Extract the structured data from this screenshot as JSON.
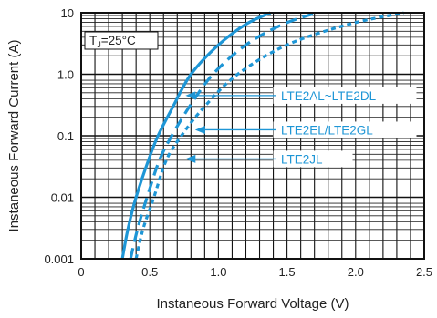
{
  "chart_data": {
    "type": "line",
    "xlabel": "Instaneous Forward Voltage (V)",
    "ylabel": "Instaneous Forward Current (A)",
    "xlim": [
      0,
      2.5
    ],
    "ylim": [
      0.001,
      10
    ],
    "y_scale": "log",
    "grid": true,
    "x_ticks": [
      {
        "v": 0,
        "label": "0"
      },
      {
        "v": 0.5,
        "label": "0.5"
      },
      {
        "v": 1.0,
        "label": "1.0"
      },
      {
        "v": 1.5,
        "label": "1.5"
      },
      {
        "v": 2.0,
        "label": "2.0"
      },
      {
        "v": 2.5,
        "label": "2.5"
      }
    ],
    "y_ticks": [
      {
        "v": 0.001,
        "label": "0.001"
      },
      {
        "v": 0.01,
        "label": "0.01"
      },
      {
        "v": 0.1,
        "label": "0.1"
      },
      {
        "v": 1.0,
        "label": "1.0"
      },
      {
        "v": 10,
        "label": "10"
      }
    ],
    "condition_label": {
      "pre": "T",
      "sub": "J",
      "post": "=25°C"
    },
    "series": [
      {
        "name": "LTE2AL~LTE2DL",
        "dash": "solid",
        "points": [
          [
            0.3,
            0.001
          ],
          [
            0.34,
            0.003
          ],
          [
            0.4,
            0.01
          ],
          [
            0.49,
            0.04
          ],
          [
            0.56,
            0.1
          ],
          [
            0.67,
            0.3
          ],
          [
            0.8,
            1.0
          ],
          [
            1.0,
            3.0
          ],
          [
            1.2,
            6.5
          ],
          [
            1.38,
            10
          ]
        ]
      },
      {
        "name": "LTE2EL/LTE2GL",
        "dash": "long-dash",
        "points": [
          [
            0.36,
            0.001
          ],
          [
            0.41,
            0.003
          ],
          [
            0.48,
            0.01
          ],
          [
            0.57,
            0.04
          ],
          [
            0.66,
            0.1
          ],
          [
            0.79,
            0.3
          ],
          [
            0.96,
            1.0
          ],
          [
            1.2,
            3.0
          ],
          [
            1.47,
            6.5
          ],
          [
            1.72,
            10
          ]
        ]
      },
      {
        "name": "LTE2JL",
        "dash": "short-dash",
        "points": [
          [
            0.4,
            0.001
          ],
          [
            0.45,
            0.003
          ],
          [
            0.53,
            0.01
          ],
          [
            0.62,
            0.04
          ],
          [
            0.73,
            0.1
          ],
          [
            0.9,
            0.3
          ],
          [
            1.14,
            1.0
          ],
          [
            1.5,
            3.0
          ],
          [
            1.95,
            6.5
          ],
          [
            2.35,
            10
          ]
        ]
      }
    ],
    "annotations": [
      {
        "series": 0,
        "text": "LTE2AL~LTE2DL",
        "point": [
          0.76,
          0.45
        ]
      },
      {
        "series": 1,
        "text": "LTE2EL/LTE2GL",
        "point": [
          0.83,
          0.125
        ]
      },
      {
        "series": 2,
        "text": "LTE2JL",
        "point": [
          0.76,
          0.042
        ]
      }
    ],
    "color": "#1e96d6"
  }
}
